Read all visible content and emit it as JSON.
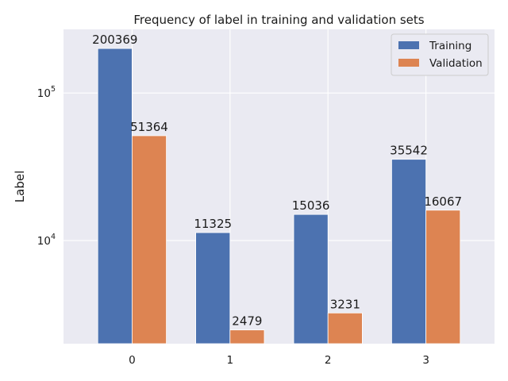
{
  "chart_data": {
    "type": "bar",
    "title": "Frequency of label in training and validation sets",
    "xlabel": "",
    "ylabel": "Label",
    "yscale": "log",
    "categories": [
      "0",
      "1",
      "2",
      "3"
    ],
    "series": [
      {
        "name": "Training",
        "values": [
          200369,
          11325,
          15036,
          35542
        ],
        "color": "#4c72b0"
      },
      {
        "name": "Validation",
        "values": [
          51364,
          2479,
          3231,
          16067
        ],
        "color": "#dd8452"
      }
    ],
    "y_ticks": [
      {
        "value": 10000,
        "base": "10",
        "exp": "4"
      },
      {
        "value": 100000,
        "base": "10",
        "exp": "5"
      }
    ],
    "ylim": [
      2000,
      270000
    ],
    "grid": true,
    "legend_position": "top-right",
    "colors": {
      "background": "#eaeaf2",
      "grid": "#ffffff"
    }
  }
}
